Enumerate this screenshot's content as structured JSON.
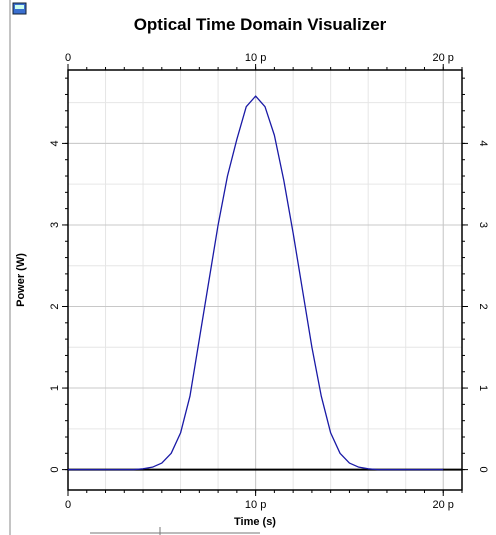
{
  "chart_data": {
    "type": "line",
    "title": "Optical Time Domain Visualizer",
    "xlabel": "Time (s)",
    "ylabel": "Power (W)",
    "x": [
      0,
      3.5e-12,
      4e-12,
      4.5e-12,
      5e-12,
      5.5e-12,
      6e-12,
      6.5e-12,
      7e-12,
      7.5e-12,
      8e-12,
      8.5e-12,
      9e-12,
      9.5e-12,
      1e-11,
      1.05e-11,
      1.1e-11,
      1.15e-11,
      1.2e-11,
      1.25e-11,
      1.3e-11,
      1.35e-11,
      1.4e-11,
      1.45e-11,
      1.5e-11,
      1.55e-11,
      1.6e-11,
      1.65e-11,
      2e-11
    ],
    "series": [
      {
        "name": "Power",
        "color": "#1a1aa6",
        "values": [
          0,
          0,
          0.01,
          0.03,
          0.08,
          0.2,
          0.45,
          0.9,
          1.6,
          2.3,
          3.0,
          3.6,
          4.05,
          4.45,
          4.58,
          4.45,
          4.1,
          3.55,
          2.9,
          2.2,
          1.5,
          0.9,
          0.45,
          0.2,
          0.08,
          0.03,
          0.01,
          0,
          0
        ]
      }
    ],
    "xlim": [
      0,
      2.1e-11
    ],
    "xticks": [
      0,
      {
        "value": 1e-11,
        "label": "10 p"
      },
      {
        "value": 2e-11,
        "label": "20 p"
      }
    ],
    "ylim": [
      -0.25,
      4.9
    ],
    "yticks": [
      0,
      1,
      2,
      3,
      4
    ],
    "grid": true
  }
}
